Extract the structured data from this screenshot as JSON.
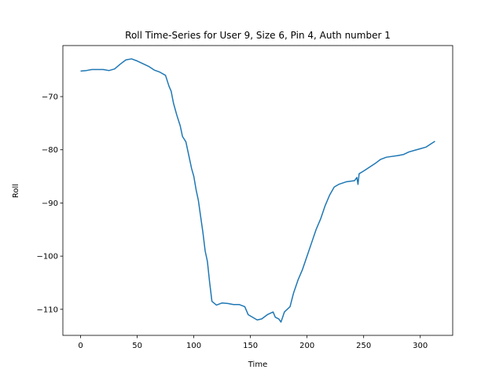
{
  "chart_data": {
    "type": "line",
    "title": "Roll Time-Series for User 9, Size 6, Pin 4, Auth number 1",
    "x_label": "Time",
    "y_label": "Roll",
    "x": [
      0,
      5,
      10,
      20,
      25,
      30,
      35,
      40,
      45,
      50,
      55,
      60,
      65,
      70,
      75,
      78,
      80,
      82,
      85,
      88,
      90,
      93,
      95,
      98,
      100,
      102,
      104,
      106,
      108,
      110,
      112,
      114,
      116,
      120,
      125,
      130,
      135,
      140,
      145,
      148,
      152,
      156,
      160,
      165,
      170,
      172,
      175,
      177,
      180,
      185,
      188,
      192,
      196,
      200,
      204,
      208,
      212,
      216,
      220,
      224,
      228,
      235,
      242,
      244,
      245,
      246,
      250,
      255,
      260,
      265,
      270,
      280,
      285,
      290,
      295,
      300,
      305,
      310,
      313
    ],
    "series": [
      {
        "name": "Roll",
        "color": "#1f77b4",
        "values": [
          -65.2,
          -65.1,
          -64.9,
          -64.9,
          -65.1,
          -64.8,
          -63.9,
          -63.1,
          -62.9,
          -63.3,
          -63.8,
          -64.3,
          -65.0,
          -65.4,
          -66.0,
          -68,
          -69,
          -71.2,
          -73.5,
          -75.5,
          -77.5,
          -78.5,
          -80.5,
          -83.5,
          -85,
          -87.5,
          -89.5,
          -92.5,
          -95.5,
          -99,
          -101,
          -105,
          -108.5,
          -109.2,
          -108.8,
          -108.9,
          -109.1,
          -109.1,
          -109.5,
          -111,
          -111.5,
          -112,
          -111.8,
          -111,
          -110.5,
          -111.5,
          -111.8,
          -112.4,
          -110.5,
          -109.5,
          -107,
          -104.5,
          -102.5,
          -100,
          -97.5,
          -95,
          -93,
          -90.5,
          -88.5,
          -87,
          -86.5,
          -86,
          -85.8,
          -85.2,
          -86.5,
          -84.5,
          -84,
          -83.3,
          -82.6,
          -81.8,
          -81.4,
          -81.1,
          -80.9,
          -80.4,
          -80.1,
          -79.8,
          -79.5,
          -78.8,
          -78.4
        ]
      }
    ],
    "xlim": [
      -15.65,
      328.65
    ],
    "ylim": [
      -114.9,
      -60.4
    ],
    "xticks": [
      0,
      50,
      100,
      150,
      200,
      250,
      300
    ],
    "yticks": [
      {
        "value": -110,
        "label": "−110"
      },
      {
        "value": -100,
        "label": "−100"
      },
      {
        "value": -90,
        "label": "−90"
      },
      {
        "value": -80,
        "label": "−80"
      },
      {
        "value": -70,
        "label": "−70"
      }
    ]
  }
}
